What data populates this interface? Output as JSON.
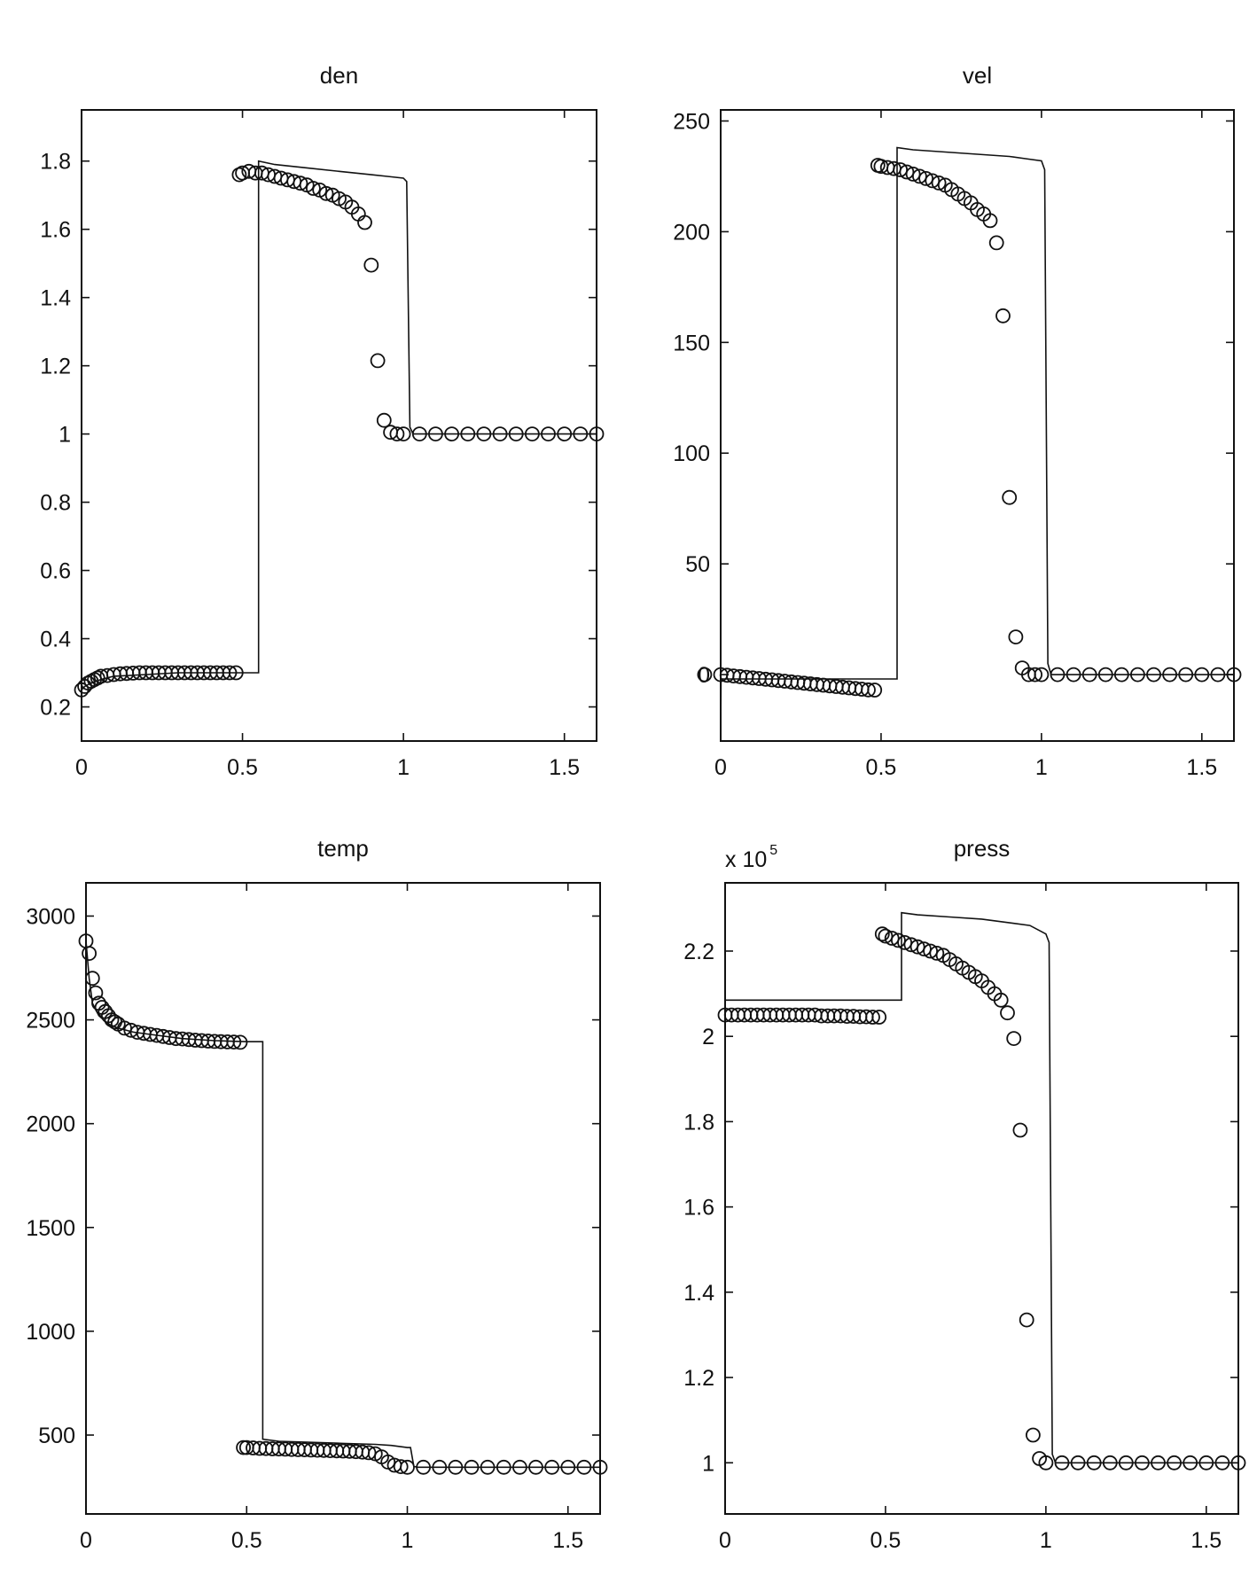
{
  "chart_data": [
    {
      "type": "line",
      "title": "den",
      "xlabel": "",
      "ylabel": "",
      "xlim": [
        0,
        1.6
      ],
      "ylim": [
        0.1,
        1.95
      ],
      "xticks": [
        0,
        0.5,
        1,
        1.5
      ],
      "xtick_labels": [
        "0",
        "0.5",
        "1",
        "1.5"
      ],
      "yticks": [
        0.2,
        0.4,
        0.6,
        0.8,
        1,
        1.2,
        1.4,
        1.6,
        1.8
      ],
      "ytick_labels": [
        "0.2",
        "0.4",
        "0.6",
        "0.8",
        "1",
        "1.2",
        "1.4",
        "1.6",
        "1.8"
      ],
      "exponent_label": "",
      "grid": false,
      "series": [
        {
          "style": "solid-line",
          "x": [
            0,
            0.01,
            0.03,
            0.06,
            0.1,
            0.2,
            0.3,
            0.4,
            0.48,
            0.55,
            0.55,
            0.6,
            0.7,
            0.8,
            0.9,
            0.95,
            1.0,
            1.01,
            1.02,
            1.03,
            1.1,
            1.3,
            1.6
          ],
          "y": [
            0.25,
            0.26,
            0.27,
            0.28,
            0.29,
            0.295,
            0.3,
            0.3,
            0.3,
            0.3,
            1.8,
            1.79,
            1.78,
            1.77,
            1.76,
            1.755,
            1.75,
            1.74,
            1.02,
            1.0,
            1.0,
            1.0,
            1.0
          ]
        },
        {
          "style": "circle-markers",
          "x": [
            0.0,
            0.01,
            0.02,
            0.03,
            0.04,
            0.05,
            0.06,
            0.08,
            0.1,
            0.12,
            0.14,
            0.16,
            0.18,
            0.2,
            0.22,
            0.24,
            0.26,
            0.28,
            0.3,
            0.32,
            0.34,
            0.36,
            0.38,
            0.4,
            0.42,
            0.44,
            0.46,
            0.48,
            0.49,
            0.5,
            0.52,
            0.54,
            0.56,
            0.58,
            0.6,
            0.62,
            0.64,
            0.66,
            0.68,
            0.7,
            0.72,
            0.74,
            0.76,
            0.78,
            0.8,
            0.82,
            0.84,
            0.86,
            0.88,
            0.9,
            0.92,
            0.94,
            0.96,
            0.98,
            1.0,
            1.05,
            1.1,
            1.15,
            1.2,
            1.25,
            1.3,
            1.35,
            1.4,
            1.45,
            1.5,
            1.55,
            1.6
          ],
          "y": [
            0.25,
            0.26,
            0.27,
            0.275,
            0.28,
            0.285,
            0.29,
            0.292,
            0.295,
            0.297,
            0.298,
            0.299,
            0.3,
            0.3,
            0.3,
            0.3,
            0.3,
            0.3,
            0.3,
            0.3,
            0.3,
            0.3,
            0.3,
            0.3,
            0.3,
            0.3,
            0.3,
            0.3,
            1.76,
            1.765,
            1.77,
            1.765,
            1.765,
            1.76,
            1.755,
            1.75,
            1.745,
            1.74,
            1.735,
            1.73,
            1.72,
            1.715,
            1.705,
            1.7,
            1.69,
            1.68,
            1.665,
            1.645,
            1.62,
            1.495,
            1.215,
            1.04,
            1.005,
            1.0,
            1.0,
            1.0,
            1.0,
            1.0,
            1.0,
            1.0,
            1.0,
            1.0,
            1.0,
            1.0,
            1.0,
            1.0,
            1.0
          ]
        }
      ]
    },
    {
      "type": "line",
      "title": "vel",
      "xlabel": "",
      "ylabel": "",
      "xlim": [
        0,
        1.6
      ],
      "ylim": [
        -30,
        255
      ],
      "xticks": [
        0,
        0.5,
        1,
        1.5
      ],
      "xtick_labels": [
        "0",
        "0.5",
        "1",
        "1.5"
      ],
      "yticks": [
        0,
        50,
        100,
        150,
        200,
        250
      ],
      "ytick_labels": [
        "0",
        "50",
        "100",
        "150",
        "200",
        "250"
      ],
      "exponent_label": "",
      "grid": false,
      "series": [
        {
          "style": "solid-line",
          "x": [
            0,
            0.001,
            0.01,
            0.55,
            0.55,
            0.6,
            0.7,
            0.8,
            0.9,
            0.95,
            1.0,
            1.01,
            1.02,
            1.03,
            1.1,
            1.3,
            1.6
          ],
          "y": [
            -28,
            -2,
            -2,
            -2,
            238,
            237,
            236,
            235,
            234,
            233,
            232,
            228,
            5,
            0,
            0,
            0,
            0
          ],
          "y_note": ""
        },
        {
          "style": "circle-markers",
          "x": [
            -0.05,
            0.0,
            0.02,
            0.04,
            0.06,
            0.08,
            0.1,
            0.12,
            0.14,
            0.16,
            0.18,
            0.2,
            0.22,
            0.24,
            0.26,
            0.28,
            0.3,
            0.32,
            0.34,
            0.36,
            0.38,
            0.4,
            0.42,
            0.44,
            0.46,
            0.48,
            0.49,
            0.5,
            0.52,
            0.54,
            0.56,
            0.58,
            0.6,
            0.62,
            0.64,
            0.66,
            0.68,
            0.7,
            0.72,
            0.74,
            0.76,
            0.78,
            0.8,
            0.82,
            0.84,
            0.86,
            0.88,
            0.9,
            0.92,
            0.94,
            0.96,
            0.98,
            1.0,
            1.05,
            1.1,
            1.15,
            1.2,
            1.25,
            1.3,
            1.35,
            1.4,
            1.45,
            1.5,
            1.55,
            1.6
          ],
          "y": [
            0,
            0,
            -0.3,
            -0.6,
            -0.9,
            -1.2,
            -1.5,
            -1.8,
            -2.1,
            -2.4,
            -2.7,
            -3,
            -3.3,
            -3.6,
            -3.9,
            -4.2,
            -4.5,
            -4.8,
            -5.1,
            -5.4,
            -5.7,
            -6,
            -6.3,
            -6.6,
            -6.9,
            -7,
            230,
            229.5,
            229,
            228.5,
            228,
            227,
            226,
            225,
            224,
            223,
            222,
            221,
            219,
            217,
            215,
            213,
            210,
            208,
            205,
            195,
            162,
            80,
            17,
            3,
            0,
            0,
            0,
            0,
            0,
            0,
            0,
            0,
            0,
            0,
            0,
            0,
            0,
            0,
            0
          ]
        }
      ]
    },
    {
      "type": "line",
      "title": "temp",
      "xlabel": "",
      "ylabel": "",
      "xlim": [
        0,
        1.6
      ],
      "ylim": [
        120,
        3160
      ],
      "xticks": [
        0,
        0.5,
        1,
        1.5
      ],
      "xtick_labels": [
        "0",
        "0.5",
        "1",
        "1.5"
      ],
      "yticks": [
        500,
        1000,
        1500,
        2000,
        2500,
        3000
      ],
      "ytick_labels": [
        "500",
        "1000",
        "1500",
        "2000",
        "2500",
        "3000"
      ],
      "exponent_label": "",
      "grid": false,
      "series": [
        {
          "style": "solid-line",
          "x": [
            0,
            0.01,
            0.02,
            0.04,
            0.07,
            0.1,
            0.15,
            0.2,
            0.3,
            0.4,
            0.5,
            0.55,
            0.55,
            0.6,
            0.7,
            0.8,
            0.9,
            0.95,
            1.0,
            1.01,
            1.02,
            1.03,
            1.1,
            1.3,
            1.6
          ],
          "y": [
            2880,
            2700,
            2580,
            2520,
            2480,
            2460,
            2440,
            2430,
            2410,
            2400,
            2395,
            2395,
            480,
            470,
            465,
            460,
            455,
            450,
            440,
            440,
            350,
            345,
            345,
            345,
            345
          ]
        },
        {
          "style": "circle-markers",
          "x": [
            0.0,
            0.01,
            0.02,
            0.03,
            0.04,
            0.05,
            0.06,
            0.07,
            0.08,
            0.09,
            0.1,
            0.12,
            0.14,
            0.16,
            0.18,
            0.2,
            0.22,
            0.24,
            0.26,
            0.28,
            0.3,
            0.32,
            0.34,
            0.36,
            0.38,
            0.4,
            0.42,
            0.44,
            0.46,
            0.48,
            0.49,
            0.5,
            0.52,
            0.54,
            0.56,
            0.58,
            0.6,
            0.62,
            0.64,
            0.66,
            0.68,
            0.7,
            0.72,
            0.74,
            0.76,
            0.78,
            0.8,
            0.82,
            0.84,
            0.86,
            0.88,
            0.9,
            0.92,
            0.94,
            0.96,
            0.98,
            1.0,
            1.05,
            1.1,
            1.15,
            1.2,
            1.25,
            1.3,
            1.35,
            1.4,
            1.45,
            1.5,
            1.55,
            1.6
          ],
          "y": [
            2880,
            2820,
            2700,
            2630,
            2580,
            2560,
            2540,
            2520,
            2500,
            2490,
            2480,
            2460,
            2450,
            2440,
            2435,
            2430,
            2425,
            2420,
            2415,
            2410,
            2408,
            2405,
            2402,
            2400,
            2398,
            2396,
            2395,
            2394,
            2393,
            2392,
            440,
            440,
            438,
            436,
            435,
            434,
            433,
            432,
            431,
            430,
            429,
            428,
            427,
            426,
            425,
            424,
            423,
            422,
            420,
            418,
            415,
            410,
            395,
            370,
            355,
            348,
            345,
            345,
            345,
            345,
            345,
            345,
            345,
            345,
            345,
            345,
            345,
            345,
            345
          ]
        }
      ]
    },
    {
      "type": "line",
      "title": "press",
      "xlabel": "",
      "ylabel": "",
      "xlim": [
        0,
        1.6
      ],
      "ylim": [
        0.88,
        2.36
      ],
      "xticks": [
        0,
        0.5,
        1,
        1.5
      ],
      "xtick_labels": [
        "0",
        "0.5",
        "1",
        "1.5"
      ],
      "yticks": [
        1,
        1.2,
        1.4,
        1.6,
        1.8,
        2,
        2.2
      ],
      "ytick_labels": [
        "1",
        "1.2",
        "1.4",
        "1.6",
        "1.8",
        "2",
        "2.2"
      ],
      "exponent_label": "x 10",
      "exponent_power": "5",
      "grid": false,
      "series": [
        {
          "style": "solid-line",
          "x": [
            0,
            0.55,
            0.55,
            0.6,
            0.7,
            0.8,
            0.9,
            0.95,
            1.0,
            1.01,
            1.02,
            1.03,
            1.1,
            1.3,
            1.6
          ],
          "y": [
            2.085,
            2.085,
            2.29,
            2.285,
            2.28,
            2.275,
            2.265,
            2.26,
            2.24,
            2.22,
            1.02,
            1.0,
            1.0,
            1.0,
            1.0
          ]
        },
        {
          "style": "circle-markers",
          "x": [
            0.0,
            0.02,
            0.04,
            0.06,
            0.08,
            0.1,
            0.12,
            0.14,
            0.16,
            0.18,
            0.2,
            0.22,
            0.24,
            0.26,
            0.28,
            0.3,
            0.32,
            0.34,
            0.36,
            0.38,
            0.4,
            0.42,
            0.44,
            0.46,
            0.48,
            0.49,
            0.5,
            0.52,
            0.54,
            0.56,
            0.58,
            0.6,
            0.62,
            0.64,
            0.66,
            0.68,
            0.7,
            0.72,
            0.74,
            0.76,
            0.78,
            0.8,
            0.82,
            0.84,
            0.86,
            0.88,
            0.9,
            0.92,
            0.94,
            0.96,
            0.98,
            1.0,
            1.05,
            1.1,
            1.15,
            1.2,
            1.25,
            1.3,
            1.35,
            1.4,
            1.45,
            1.5,
            1.55,
            1.6
          ],
          "y": [
            2.05,
            2.05,
            2.05,
            2.05,
            2.05,
            2.05,
            2.05,
            2.05,
            2.05,
            2.05,
            2.05,
            2.05,
            2.05,
            2.05,
            2.05,
            2.048,
            2.048,
            2.048,
            2.048,
            2.047,
            2.047,
            2.046,
            2.046,
            2.045,
            2.045,
            2.24,
            2.235,
            2.23,
            2.225,
            2.22,
            2.215,
            2.21,
            2.205,
            2.2,
            2.195,
            2.19,
            2.18,
            2.17,
            2.16,
            2.15,
            2.14,
            2.13,
            2.115,
            2.1,
            2.085,
            2.055,
            1.995,
            1.78,
            1.335,
            1.065,
            1.01,
            1.0,
            1.0,
            1.0,
            1.0,
            1.0,
            1.0,
            1.0,
            1.0,
            1.0,
            1.0,
            1.0,
            1.0,
            1.0
          ]
        }
      ]
    }
  ]
}
